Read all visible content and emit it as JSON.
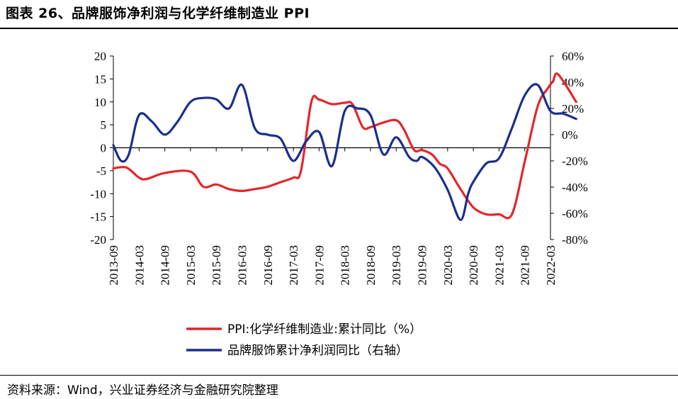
{
  "header": {
    "title": "图表 26、品牌服饰净利润与化学纤维制造业 PPI"
  },
  "footer": {
    "source": "资料来源：Wind，兴业证券经济与金融研究院整理"
  },
  "chart_data": {
    "type": "line",
    "x_ticks": [
      "2013-09",
      "2014-03",
      "2014-09",
      "2015-03",
      "2015-09",
      "2016-03",
      "2016-09",
      "2017-03",
      "2017-09",
      "2018-03",
      "2018-09",
      "2019-03",
      "2019-09",
      "2020-03",
      "2020-09",
      "2021-03",
      "2021-09",
      "2022-03"
    ],
    "left_axis": {
      "ylim": [
        -20,
        20
      ],
      "ticks": [
        "20",
        "15",
        "10",
        "5",
        "0",
        "-5",
        "-10",
        "-15",
        "-20"
      ],
      "tick_values": [
        20,
        15,
        10,
        5,
        0,
        -5,
        -10,
        -15,
        -20
      ]
    },
    "right_axis": {
      "ylim": [
        -80,
        60
      ],
      "ticks": [
        "60%",
        "40%",
        "20%",
        "0%",
        "-20%",
        "-40%",
        "-60%",
        "-80%"
      ],
      "tick_values": [
        60,
        40,
        20,
        0,
        -20,
        -40,
        -60,
        -80
      ]
    },
    "series": [
      {
        "name": "PPI:化学纤维制造业:累计同比（%）",
        "axis": "left",
        "color": "#e3262b",
        "x": [
          0,
          0.5,
          1,
          1.3,
          2,
          3,
          3.5,
          4,
          4.5,
          5,
          5.5,
          6,
          6.5,
          7,
          7.3,
          7.7,
          8,
          8.5,
          9,
          9.3,
          9.7,
          10,
          10.5,
          11,
          11.3,
          11.7,
          12,
          12.4,
          12.7,
          13,
          13.5,
          14,
          14.5,
          15,
          15.5,
          16,
          16.5,
          16.9,
          17.1,
          17.3,
          18
        ],
        "y": [
          -4.5,
          -4.3,
          -6.5,
          -6.8,
          -5.5,
          -5.2,
          -8.5,
          -8,
          -9,
          -9.4,
          -9,
          -8.5,
          -7.5,
          -6.5,
          -5,
          10,
          10.5,
          9.5,
          9.8,
          9.5,
          4.5,
          4.5,
          5.5,
          6,
          4,
          -0.5,
          -0.5,
          -1.5,
          -3.5,
          -4.5,
          -9,
          -13,
          -14.5,
          -14.5,
          -14.5,
          -3,
          9,
          13,
          14.5,
          16,
          10
        ]
      },
      {
        "name": "品牌服饰累计净利润同比（右轴）",
        "axis": "right",
        "color": "#1b2f8a",
        "x": [
          0,
          0.3,
          0.6,
          1,
          1.5,
          2,
          2.5,
          3,
          3.5,
          4,
          4.5,
          5,
          5.5,
          6,
          6.5,
          7,
          7.5,
          8,
          8.5,
          9,
          9.5,
          10,
          10.5,
          11,
          11.5,
          11.8,
          12,
          12.5,
          13,
          13.5,
          13.8,
          14,
          14.5,
          15,
          15.5,
          16,
          16.5,
          17,
          17.5,
          18
        ],
        "y": [
          -8,
          -20,
          -15,
          15,
          10,
          0,
          10,
          25,
          28,
          27,
          20,
          38,
          5,
          0,
          -3,
          -20,
          -5,
          2,
          -24,
          18,
          20,
          15,
          -15,
          -2,
          -17,
          -20,
          -17,
          -25,
          -42,
          -65,
          -45,
          -36,
          -22,
          -18,
          5,
          30,
          38,
          18,
          16,
          12
        ]
      }
    ]
  }
}
